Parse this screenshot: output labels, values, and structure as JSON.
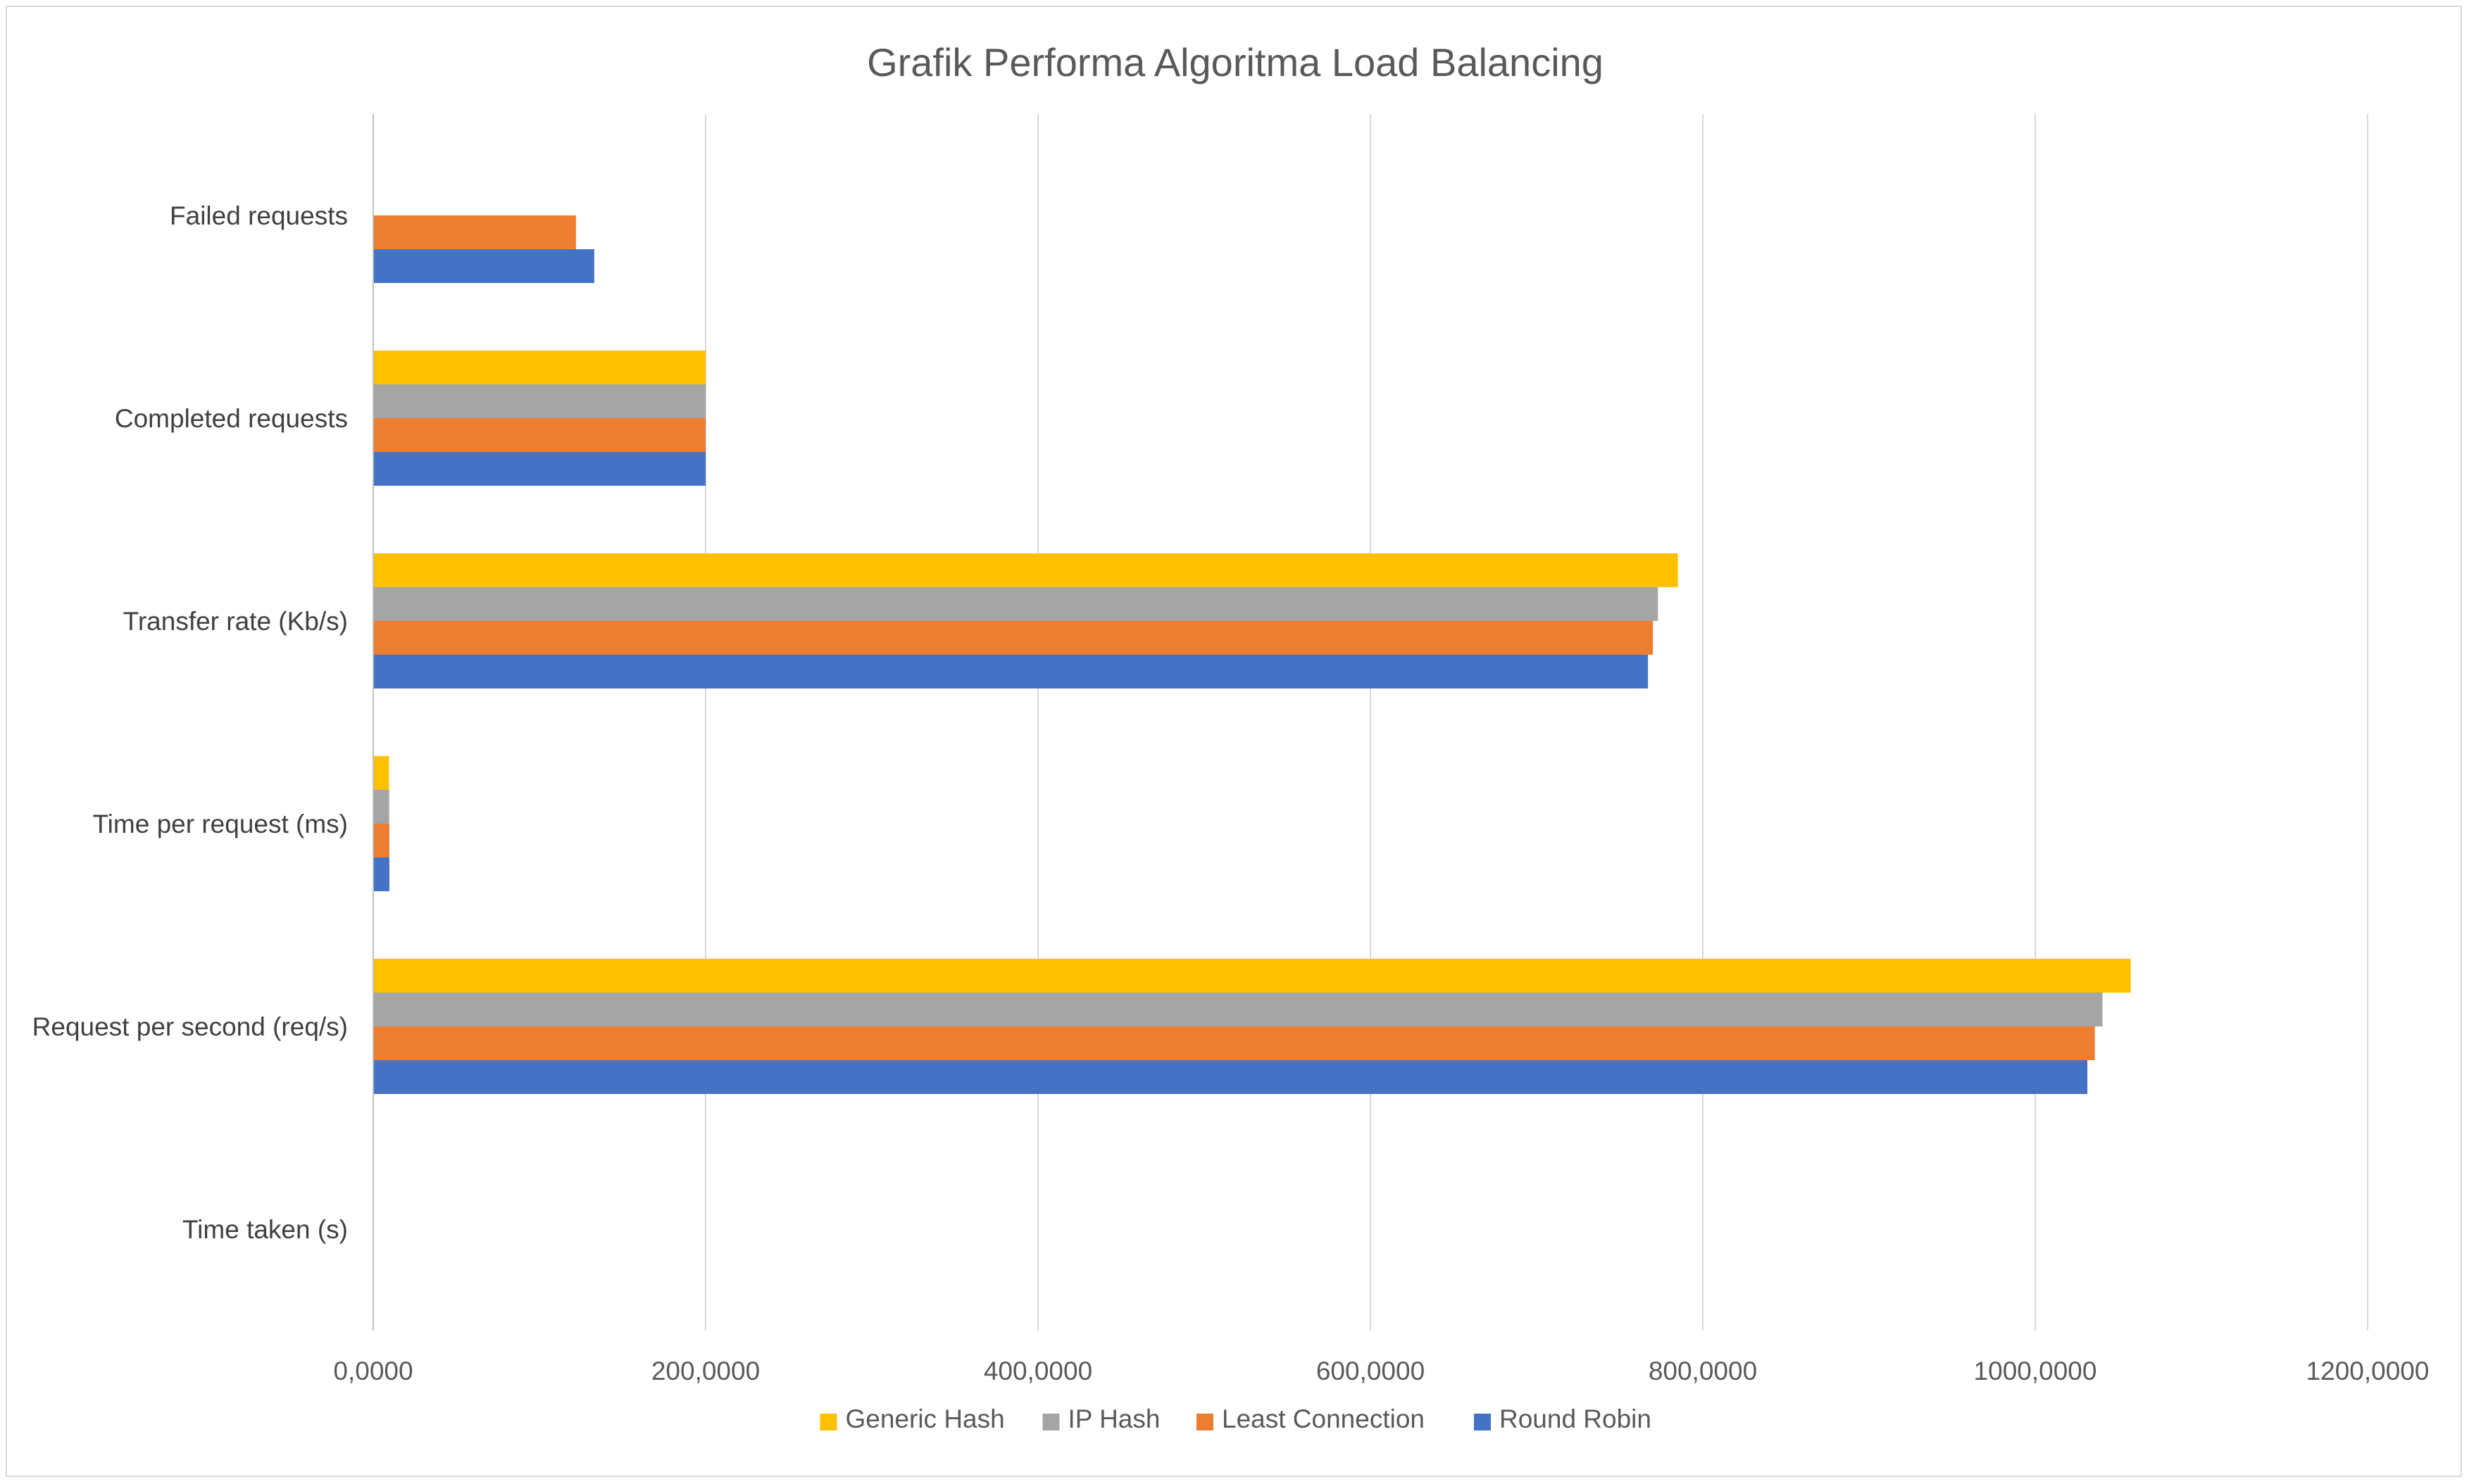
{
  "chart_data": {
    "type": "bar",
    "orientation": "horizontal",
    "title": "Grafik Performa Algoritma Load Balancing",
    "xlabel": "",
    "ylabel": "",
    "categories": [
      "Time taken (s)",
      "Request per second (req/s)",
      "Time per request (ms)",
      "Transfer rate (Kb/s)",
      "Completed requests",
      "Failed requests"
    ],
    "series": [
      {
        "name": "Round Robin",
        "color": "#4472C4",
        "values": [
          0.2,
          1031.4,
          9.7,
          767.0,
          200,
          133
        ]
      },
      {
        "name": "Least Connection",
        "color": "#ED7D31",
        "values": [
          0.2,
          1035.9,
          9.7,
          770.0,
          200,
          122
        ]
      },
      {
        "name": "IP Hash",
        "color": "#A5A5A5",
        "values": [
          0.2,
          1040.5,
          9.6,
          773.0,
          200,
          0
        ]
      },
      {
        "name": "Generic Hash",
        "color": "#FFC000",
        "values": [
          0.2,
          1057.5,
          9.5,
          785.0,
          200,
          0
        ]
      }
    ],
    "xlim": [
      0,
      1200
    ],
    "x_ticks": [
      "0,0000",
      "200,0000",
      "400,0000",
      "600,0000",
      "800,0000",
      "1000,0000",
      "1200,0000"
    ],
    "x_tick_values": [
      0,
      200,
      400,
      600,
      800,
      1000,
      1200
    ],
    "grid": "vertical",
    "legend": {
      "position": "bottom",
      "order": [
        "Generic Hash",
        "IP Hash",
        "Least Connection",
        "Round Robin"
      ]
    }
  }
}
